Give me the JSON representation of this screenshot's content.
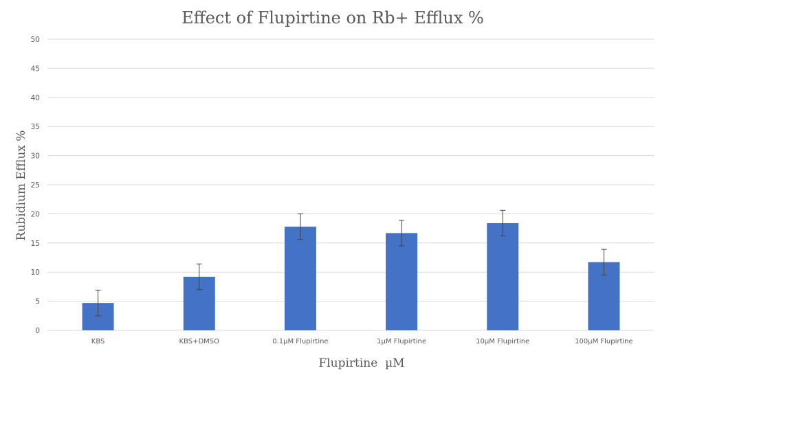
{
  "chart_data": {
    "type": "bar",
    "title": "Effect of Flupirtine on Rb+ Efflux %",
    "xlabel": "Flupirtine  µM",
    "ylabel": "Rubidium Efflux %",
    "categories": [
      "KBS",
      "KBS+DMSO",
      "0.1µM Flupirtine",
      "1µM Flupirtine",
      "10µM Flupirtine",
      "100µM Flupirtine"
    ],
    "values": [
      4.7,
      9.2,
      17.8,
      16.7,
      18.4,
      11.7
    ],
    "error": [
      2.2,
      2.2,
      2.2,
      2.2,
      2.2,
      2.2
    ],
    "ylim": [
      0,
      50
    ],
    "yticks": [
      0,
      5,
      10,
      15,
      20,
      25,
      30,
      35,
      40,
      45,
      50
    ],
    "grid": true,
    "bar_color": "#4472C4",
    "legend": "none"
  }
}
